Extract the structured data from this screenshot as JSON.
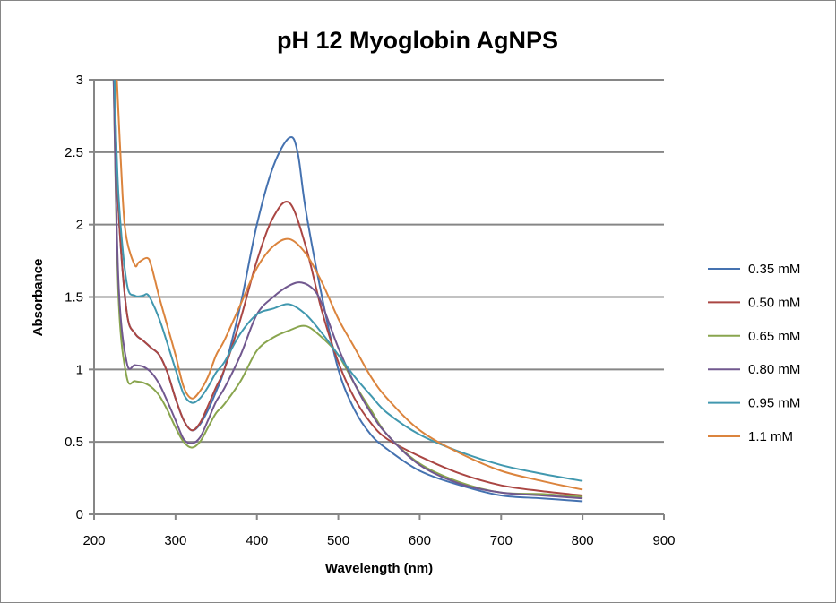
{
  "chart_data": {
    "type": "line",
    "title": "pH 12 Myoglobin AgNPS",
    "xlabel": "Wavelength (nm)",
    "ylabel": "Absorbance",
    "xlim": [
      200,
      900
    ],
    "ylim": [
      0,
      3
    ],
    "xticks": [
      "200",
      "300",
      "400",
      "500",
      "600",
      "700",
      "800",
      "900"
    ],
    "yticks": [
      "0",
      "0.5",
      "1",
      "1.5",
      "2",
      "2.5",
      "3"
    ],
    "grid": "horizontal",
    "legend_position": "right",
    "series": [
      {
        "name": "0.35 mM",
        "color": "#4572B0",
        "x": [
          225,
          230,
          240,
          250,
          260,
          270,
          280,
          290,
          300,
          310,
          320,
          330,
          340,
          350,
          360,
          380,
          400,
          420,
          440,
          450,
          460,
          480,
          500,
          520,
          540,
          560,
          600,
          650,
          700,
          750,
          800
        ],
        "y": [
          3.0,
          2.1,
          1.4,
          1.25,
          1.2,
          1.15,
          1.1,
          0.98,
          0.8,
          0.65,
          0.58,
          0.62,
          0.72,
          0.85,
          1.0,
          1.45,
          2.0,
          2.4,
          2.6,
          2.5,
          2.1,
          1.5,
          1.0,
          0.72,
          0.55,
          0.45,
          0.3,
          0.2,
          0.13,
          0.11,
          0.09
        ]
      },
      {
        "name": "0.50 mM",
        "color": "#AA4643",
        "x": [
          225,
          230,
          240,
          250,
          260,
          270,
          280,
          290,
          300,
          310,
          320,
          330,
          340,
          350,
          360,
          380,
          400,
          420,
          440,
          460,
          480,
          500,
          520,
          540,
          560,
          600,
          650,
          700,
          750,
          800
        ],
        "y": [
          3.0,
          2.1,
          1.4,
          1.25,
          1.2,
          1.15,
          1.1,
          0.98,
          0.8,
          0.65,
          0.58,
          0.63,
          0.75,
          0.88,
          1.0,
          1.35,
          1.75,
          2.05,
          2.15,
          1.85,
          1.4,
          1.05,
          0.8,
          0.63,
          0.52,
          0.4,
          0.28,
          0.2,
          0.16,
          0.13
        ]
      },
      {
        "name": "0.65 mM",
        "color": "#89A54E",
        "x": [
          224,
          230,
          240,
          250,
          260,
          270,
          280,
          290,
          300,
          310,
          320,
          330,
          340,
          350,
          360,
          380,
          400,
          420,
          440,
          460,
          480,
          500,
          520,
          540,
          560,
          600,
          650,
          700,
          750,
          800
        ],
        "y": [
          3.0,
          1.5,
          0.95,
          0.92,
          0.91,
          0.88,
          0.82,
          0.72,
          0.6,
          0.5,
          0.46,
          0.5,
          0.6,
          0.7,
          0.76,
          0.92,
          1.13,
          1.22,
          1.27,
          1.3,
          1.22,
          1.1,
          0.9,
          0.72,
          0.55,
          0.35,
          0.22,
          0.15,
          0.14,
          0.12
        ]
      },
      {
        "name": "0.80 mM",
        "color": "#71588F",
        "x": [
          224,
          230,
          240,
          250,
          260,
          270,
          280,
          290,
          300,
          310,
          320,
          330,
          340,
          350,
          360,
          380,
          400,
          420,
          440,
          455,
          470,
          480,
          500,
          520,
          540,
          560,
          600,
          650,
          700,
          750,
          800
        ],
        "y": [
          3.0,
          1.6,
          1.05,
          1.03,
          1.02,
          0.98,
          0.9,
          0.78,
          0.65,
          0.52,
          0.49,
          0.53,
          0.65,
          0.78,
          0.87,
          1.1,
          1.38,
          1.5,
          1.58,
          1.6,
          1.55,
          1.45,
          1.15,
          0.9,
          0.7,
          0.55,
          0.34,
          0.21,
          0.15,
          0.13,
          0.11
        ]
      },
      {
        "name": "0.95 mM",
        "color": "#4198AF",
        "x": [
          225,
          230,
          240,
          250,
          260,
          265,
          270,
          280,
          290,
          300,
          310,
          320,
          330,
          340,
          350,
          360,
          380,
          400,
          420,
          440,
          460,
          480,
          500,
          520,
          540,
          560,
          600,
          650,
          700,
          750,
          800
        ],
        "y": [
          3.0,
          2.2,
          1.6,
          1.51,
          1.51,
          1.52,
          1.48,
          1.35,
          1.18,
          1.0,
          0.83,
          0.77,
          0.8,
          0.88,
          0.98,
          1.05,
          1.25,
          1.38,
          1.42,
          1.45,
          1.38,
          1.25,
          1.1,
          0.95,
          0.82,
          0.7,
          0.55,
          0.43,
          0.34,
          0.28,
          0.23
        ]
      },
      {
        "name": "1.1 mM",
        "color": "#DB843D",
        "x": [
          228,
          235,
          240,
          250,
          255,
          265,
          270,
          280,
          290,
          300,
          310,
          320,
          330,
          340,
          350,
          360,
          380,
          400,
          420,
          440,
          460,
          480,
          500,
          520,
          540,
          560,
          600,
          650,
          700,
          750,
          800
        ],
        "y": [
          3.0,
          2.2,
          1.9,
          1.72,
          1.74,
          1.77,
          1.72,
          1.5,
          1.3,
          1.1,
          0.88,
          0.8,
          0.85,
          0.95,
          1.1,
          1.2,
          1.45,
          1.7,
          1.85,
          1.9,
          1.8,
          1.6,
          1.35,
          1.15,
          0.95,
          0.8,
          0.58,
          0.42,
          0.3,
          0.23,
          0.17
        ]
      }
    ]
  }
}
